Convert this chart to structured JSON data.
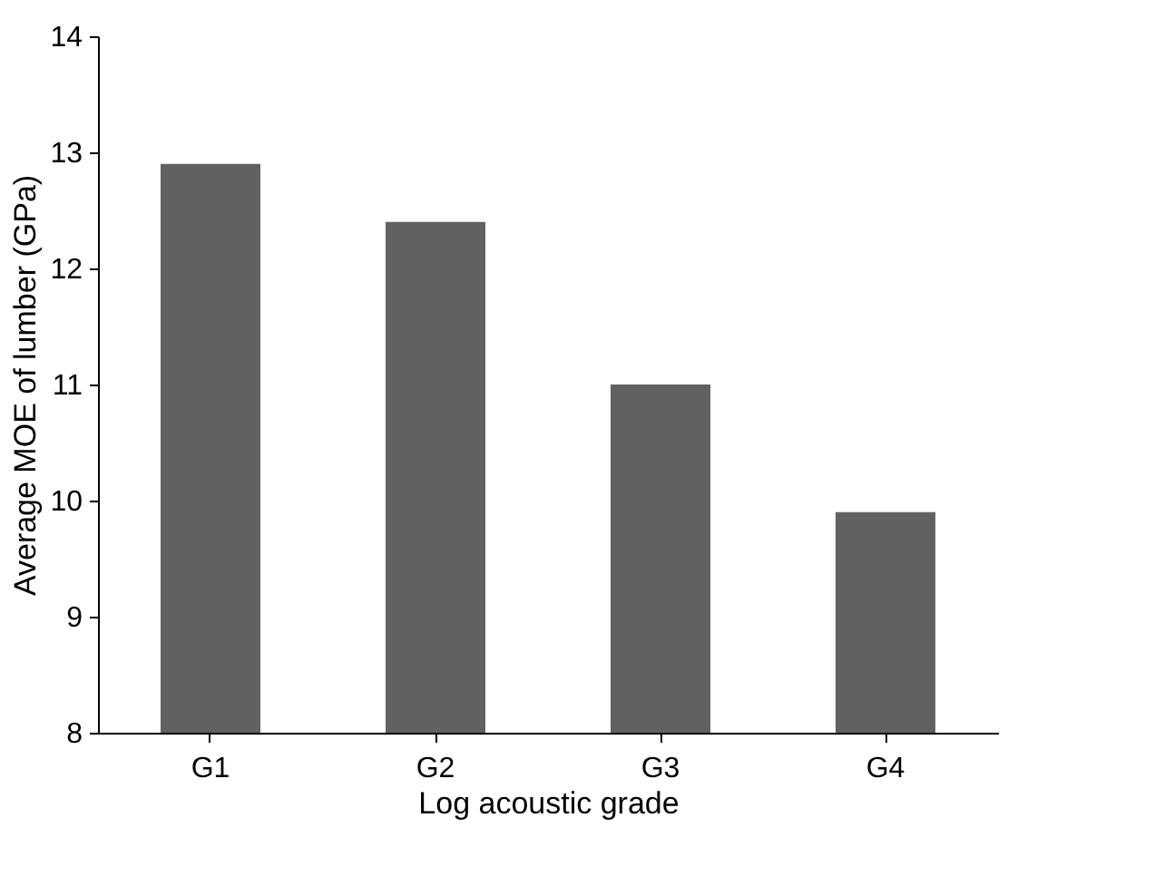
{
  "chart_data": {
    "type": "bar",
    "xlabel": "Log acoustic grade",
    "ylabel": "Average MOE of lumber (GPa)",
    "categories": [
      "G1",
      "G2",
      "G3",
      "G4"
    ],
    "values": [
      12.9,
      12.4,
      11.0,
      9.9
    ],
    "color": "#606260",
    "ylim": [
      8,
      14
    ],
    "yticks": [
      8,
      9,
      10,
      11,
      12,
      13,
      14
    ],
    "grid": false
  }
}
